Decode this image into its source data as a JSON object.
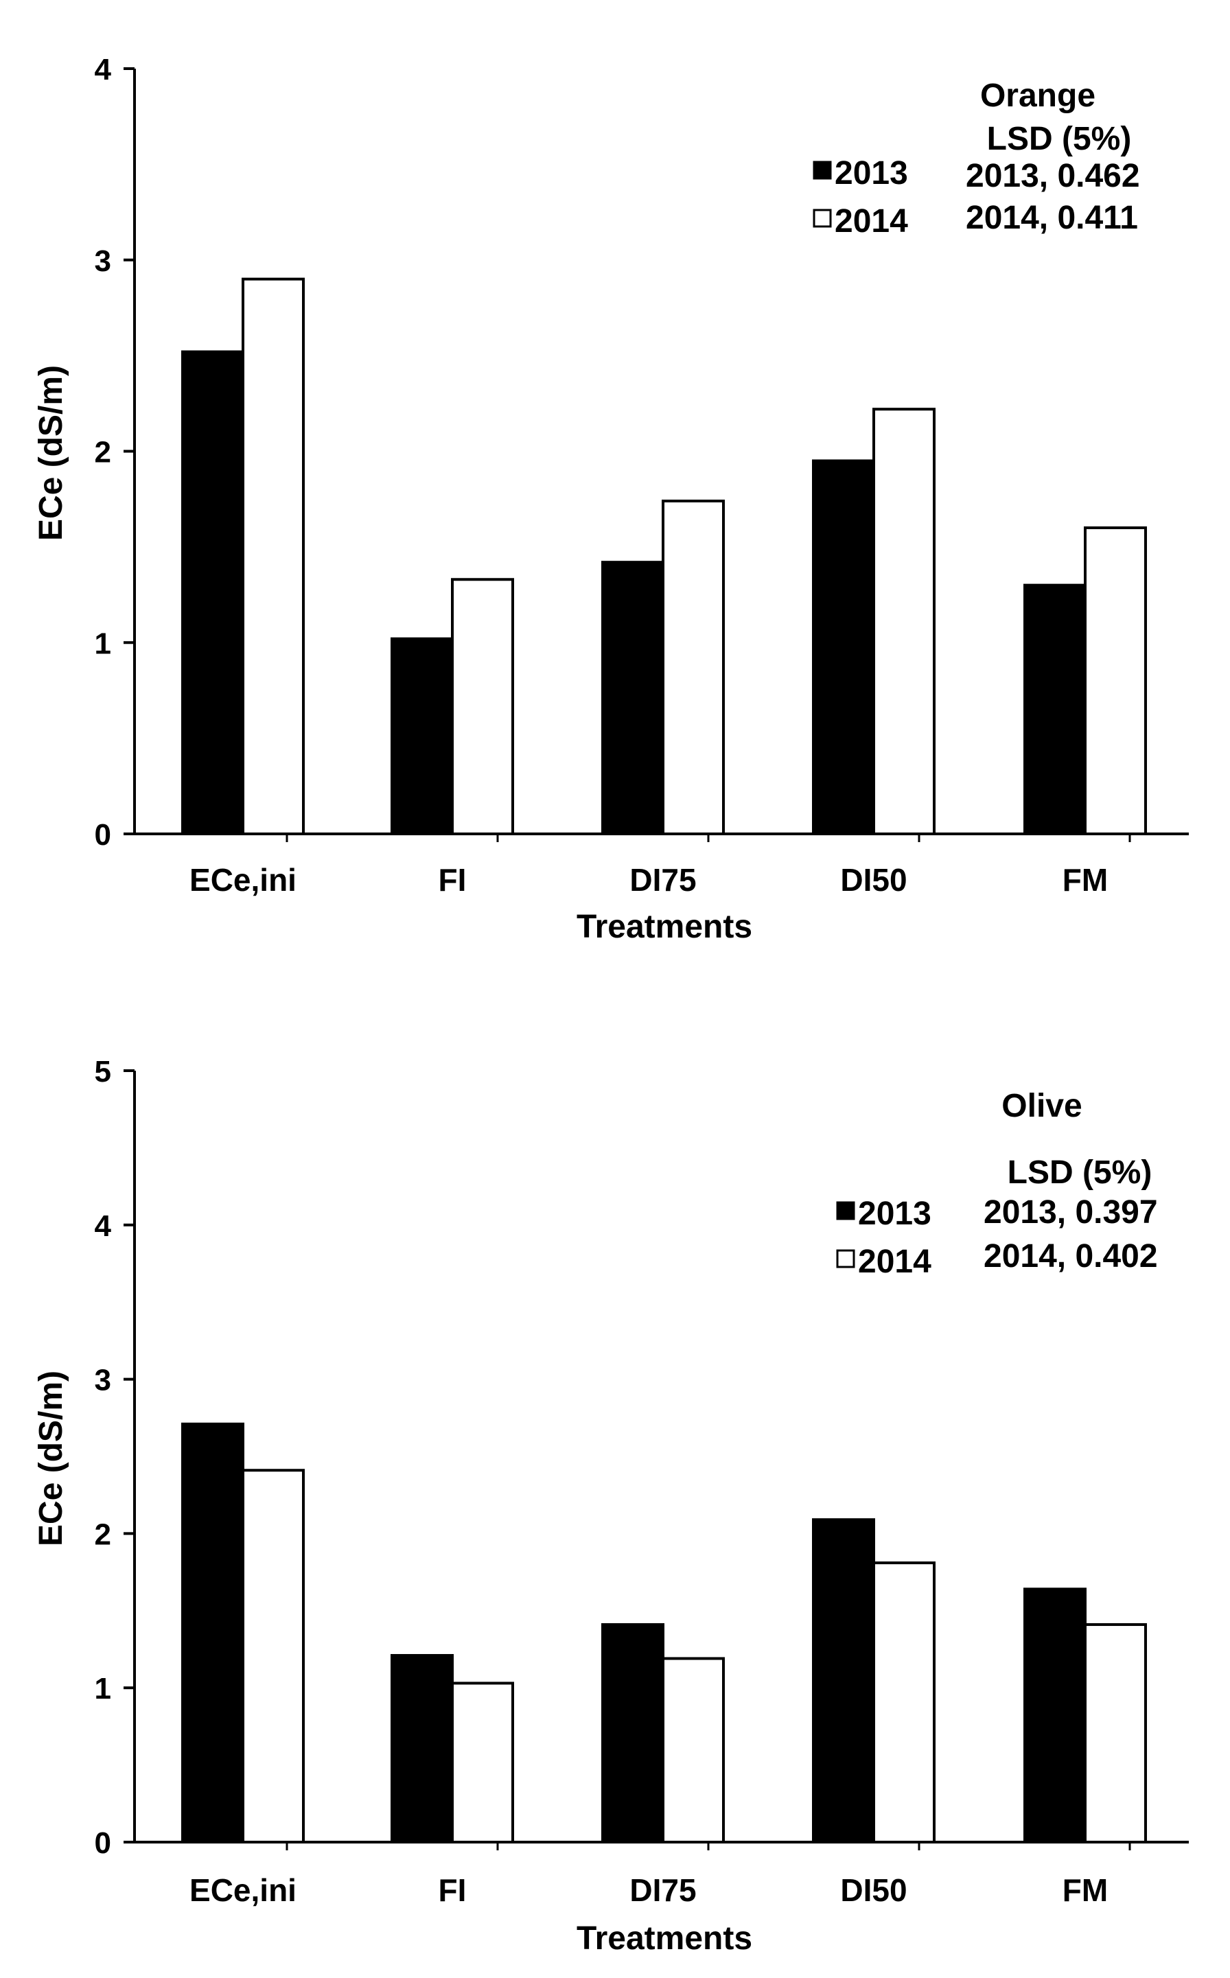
{
  "chart_data": [
    {
      "type": "bar",
      "title": "Orange",
      "xlabel": "Treatments",
      "ylabel": "ECe (dS/m)",
      "ylim": [
        0,
        4
      ],
      "yticks": [
        "0",
        "1",
        "2",
        "3",
        "4"
      ],
      "categories": [
        "ECe,ini",
        "FI",
        "DI75",
        "DI50",
        "FM"
      ],
      "series": [
        {
          "name": "2013",
          "color": "#000000",
          "values": [
            2.52,
            1.02,
            1.42,
            1.95,
            1.3
          ]
        },
        {
          "name": "2014",
          "color": "#ffffff",
          "values": [
            2.9,
            1.33,
            1.74,
            2.22,
            1.6
          ]
        }
      ],
      "legend": [
        "2013",
        "2014"
      ],
      "lsd": {
        "header": "LSD (5%)",
        "lines": [
          "2013, 0.462",
          "2014, 0.411"
        ]
      },
      "grid": false
    },
    {
      "type": "bar",
      "title": "Olive",
      "xlabel": "Treatments",
      "ylabel": "ECe (dS/m)",
      "ylim": [
        0,
        5
      ],
      "yticks": [
        "0",
        "1",
        "2",
        "3",
        "4",
        "5"
      ],
      "categories": [
        "ECe,ini",
        "FI",
        "DI75",
        "DI50",
        "FM"
      ],
      "series": [
        {
          "name": "2013",
          "color": "#000000",
          "values": [
            2.71,
            1.21,
            1.41,
            2.09,
            1.64
          ]
        },
        {
          "name": "2014",
          "color": "#ffffff",
          "values": [
            2.41,
            1.03,
            1.19,
            1.81,
            1.41
          ]
        }
      ],
      "legend": [
        "2013",
        "2014"
      ],
      "lsd": {
        "header": "LSD (5%)",
        "lines": [
          "2013, 0.397",
          "2014, 0.402"
        ]
      },
      "grid": false
    }
  ]
}
